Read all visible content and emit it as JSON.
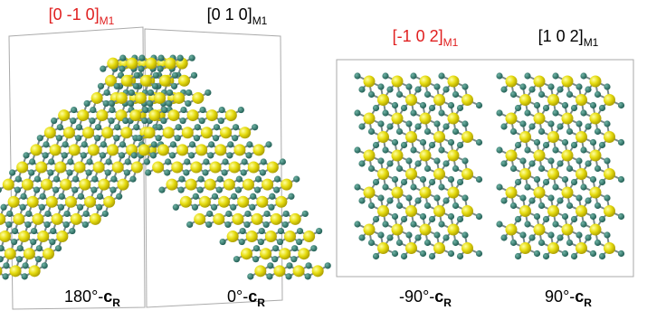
{
  "top_labels": [
    {
      "text": "[0 -1 0]",
      "sub": "M1"
    },
    {
      "text": "[0 1 0]",
      "sub": "M1"
    },
    {
      "text": "[-1 0 2]",
      "sub": "M1"
    },
    {
      "text": "[1 0 2]",
      "sub": "M1"
    }
  ],
  "bottom_labels": [
    {
      "text": "180°-",
      "bold": "c",
      "sub": "R"
    },
    {
      "text": "0°-",
      "bold": "c",
      "sub": "R"
    },
    {
      "text": "-90°-",
      "bold": "c",
      "sub": "R"
    },
    {
      "text": "90°-",
      "bold": "c",
      "sub": "R"
    }
  ]
}
